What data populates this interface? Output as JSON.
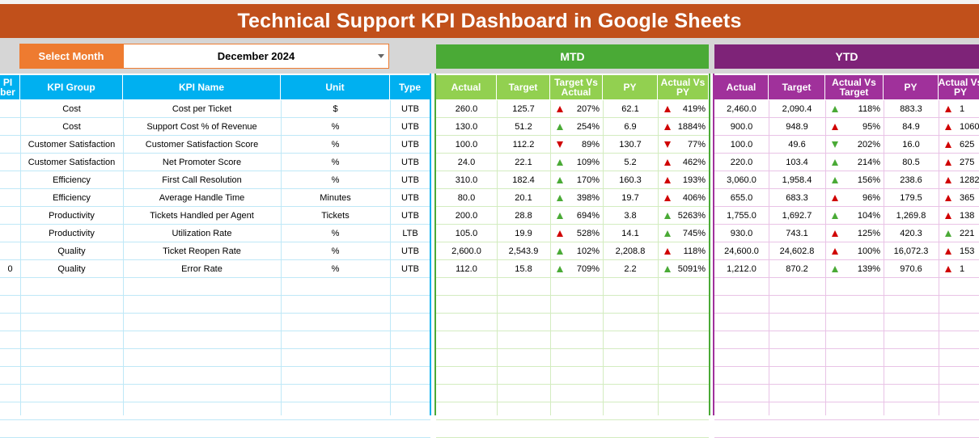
{
  "title": "Technical Support KPI Dashboard in Google Sheets",
  "selector": {
    "label": "Select Month",
    "value": "December 2024"
  },
  "sections": {
    "mtd": "MTD",
    "ytd": "YTD"
  },
  "left_headers": [
    "PI\nber",
    "KPI Group",
    "KPI Name",
    "Unit",
    "Type"
  ],
  "mtd_headers": [
    "Actual",
    "Target",
    "Target Vs\nActual",
    "PY",
    "Actual Vs\nPY"
  ],
  "ytd_headers": [
    "Actual",
    "Target",
    "Actual Vs\nTarget",
    "PY",
    "Actual Vs\nPY"
  ],
  "colors": {
    "title": "#c1501b",
    "select": "#ee7b30",
    "mtd": "#4aaa36",
    "ytd": "#7e2378",
    "up": "#4aaa36",
    "down": "#d00000"
  },
  "rows": [
    {
      "num": "",
      "group": "Cost",
      "name": "Cost per Ticket",
      "unit": "$",
      "type": "UTB",
      "mtd": {
        "actual": "260.0",
        "target": "125.7",
        "tva": "207%",
        "tva_icon": "up-red",
        "py": "62.1",
        "avp": "419%",
        "avp_icon": "up-red"
      },
      "ytd": {
        "actual": "2,460.0",
        "target": "2,090.4",
        "avt": "118%",
        "avt_icon": "up-green",
        "py": "883.3",
        "avp": "1",
        "avp_icon": "up-red"
      }
    },
    {
      "num": "",
      "group": "Cost",
      "name": "Support Cost % of Revenue",
      "unit": "%",
      "type": "UTB",
      "mtd": {
        "actual": "130.0",
        "target": "51.2",
        "tva": "254%",
        "tva_icon": "up-green",
        "py": "6.9",
        "avp": "1884%",
        "avp_icon": "up-red"
      },
      "ytd": {
        "actual": "900.0",
        "target": "948.9",
        "avt": "95%",
        "avt_icon": "up-red",
        "py": "84.9",
        "avp": "1060",
        "avp_icon": "up-red"
      }
    },
    {
      "num": "",
      "group": "Customer Satisfaction",
      "name": "Customer Satisfaction Score",
      "unit": "%",
      "type": "UTB",
      "mtd": {
        "actual": "100.0",
        "target": "112.2",
        "tva": "89%",
        "tva_icon": "down-red",
        "py": "130.7",
        "avp": "77%",
        "avp_icon": "down-red"
      },
      "ytd": {
        "actual": "100.0",
        "target": "49.6",
        "avt": "202%",
        "avt_icon": "down-green",
        "py": "16.0",
        "avp": "625",
        "avp_icon": "up-red"
      }
    },
    {
      "num": "",
      "group": "Customer Satisfaction",
      "name": "Net Promoter Score",
      "unit": "%",
      "type": "UTB",
      "mtd": {
        "actual": "24.0",
        "target": "22.1",
        "tva": "109%",
        "tva_icon": "up-green",
        "py": "5.2",
        "avp": "462%",
        "avp_icon": "up-red"
      },
      "ytd": {
        "actual": "220.0",
        "target": "103.4",
        "avt": "214%",
        "avt_icon": "up-green",
        "py": "80.5",
        "avp": "275",
        "avp_icon": "up-red"
      }
    },
    {
      "num": "",
      "group": "Efficiency",
      "name": "First Call Resolution",
      "unit": "%",
      "type": "UTB",
      "mtd": {
        "actual": "310.0",
        "target": "182.4",
        "tva": "170%",
        "tva_icon": "up-green",
        "py": "160.3",
        "avp": "193%",
        "avp_icon": "up-red"
      },
      "ytd": {
        "actual": "3,060.0",
        "target": "1,958.4",
        "avt": "156%",
        "avt_icon": "up-green",
        "py": "238.6",
        "avp": "1282",
        "avp_icon": "up-red"
      }
    },
    {
      "num": "",
      "group": "Efficiency",
      "name": "Average Handle Time",
      "unit": "Minutes",
      "type": "UTB",
      "mtd": {
        "actual": "80.0",
        "target": "20.1",
        "tva": "398%",
        "tva_icon": "up-green",
        "py": "19.7",
        "avp": "406%",
        "avp_icon": "up-red"
      },
      "ytd": {
        "actual": "655.0",
        "target": "683.3",
        "avt": "96%",
        "avt_icon": "up-red",
        "py": "179.5",
        "avp": "365",
        "avp_icon": "up-red"
      }
    },
    {
      "num": "",
      "group": "Productivity",
      "name": "Tickets Handled per Agent",
      "unit": "Tickets",
      "type": "UTB",
      "mtd": {
        "actual": "200.0",
        "target": "28.8",
        "tva": "694%",
        "tva_icon": "up-green",
        "py": "3.8",
        "avp": "5263%",
        "avp_icon": "up-green"
      },
      "ytd": {
        "actual": "1,755.0",
        "target": "1,692.7",
        "avt": "104%",
        "avt_icon": "up-green",
        "py": "1,269.8",
        "avp": "138",
        "avp_icon": "up-red"
      }
    },
    {
      "num": "",
      "group": "Productivity",
      "name": "Utilization Rate",
      "unit": "%",
      "type": "LTB",
      "mtd": {
        "actual": "105.0",
        "target": "19.9",
        "tva": "528%",
        "tva_icon": "up-red",
        "py": "14.1",
        "avp": "745%",
        "avp_icon": "up-green"
      },
      "ytd": {
        "actual": "930.0",
        "target": "743.1",
        "avt": "125%",
        "avt_icon": "up-red",
        "py": "420.3",
        "avp": "221",
        "avp_icon": "up-green"
      }
    },
    {
      "num": "",
      "group": "Quality",
      "name": "Ticket Reopen Rate",
      "unit": "%",
      "type": "UTB",
      "mtd": {
        "actual": "2,600.0",
        "target": "2,543.9",
        "tva": "102%",
        "tva_icon": "up-green",
        "py": "2,208.8",
        "avp": "118%",
        "avp_icon": "up-red"
      },
      "ytd": {
        "actual": "24,600.0",
        "target": "24,602.8",
        "avt": "100%",
        "avt_icon": "up-red",
        "py": "16,072.3",
        "avp": "153",
        "avp_icon": "up-red"
      }
    },
    {
      "num": "0",
      "group": "Quality",
      "name": "Error Rate",
      "unit": "%",
      "type": "UTB",
      "mtd": {
        "actual": "112.0",
        "target": "15.8",
        "tva": "709%",
        "tva_icon": "up-green",
        "py": "2.2",
        "avp": "5091%",
        "avp_icon": "up-green"
      },
      "ytd": {
        "actual": "1,212.0",
        "target": "870.2",
        "avt": "139%",
        "avt_icon": "up-green",
        "py": "970.6",
        "avp": "1",
        "avp_icon": "up-red"
      }
    }
  ]
}
